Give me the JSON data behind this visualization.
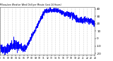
{
  "title": "Milwaukee Weather Wind Chill per Minute (Last 24 Hours)",
  "line_color": "#0000ff",
  "bg_color": "#ffffff",
  "plot_bg": "#ffffff",
  "grid_color": "#aaaaaa",
  "ylim": [
    -22,
    42
  ],
  "xlim": [
    0,
    1440
  ],
  "yticks": [
    -20,
    -10,
    0,
    10,
    20,
    30,
    40
  ],
  "xtick_count": 24,
  "ylabel": "",
  "xlabel": ""
}
